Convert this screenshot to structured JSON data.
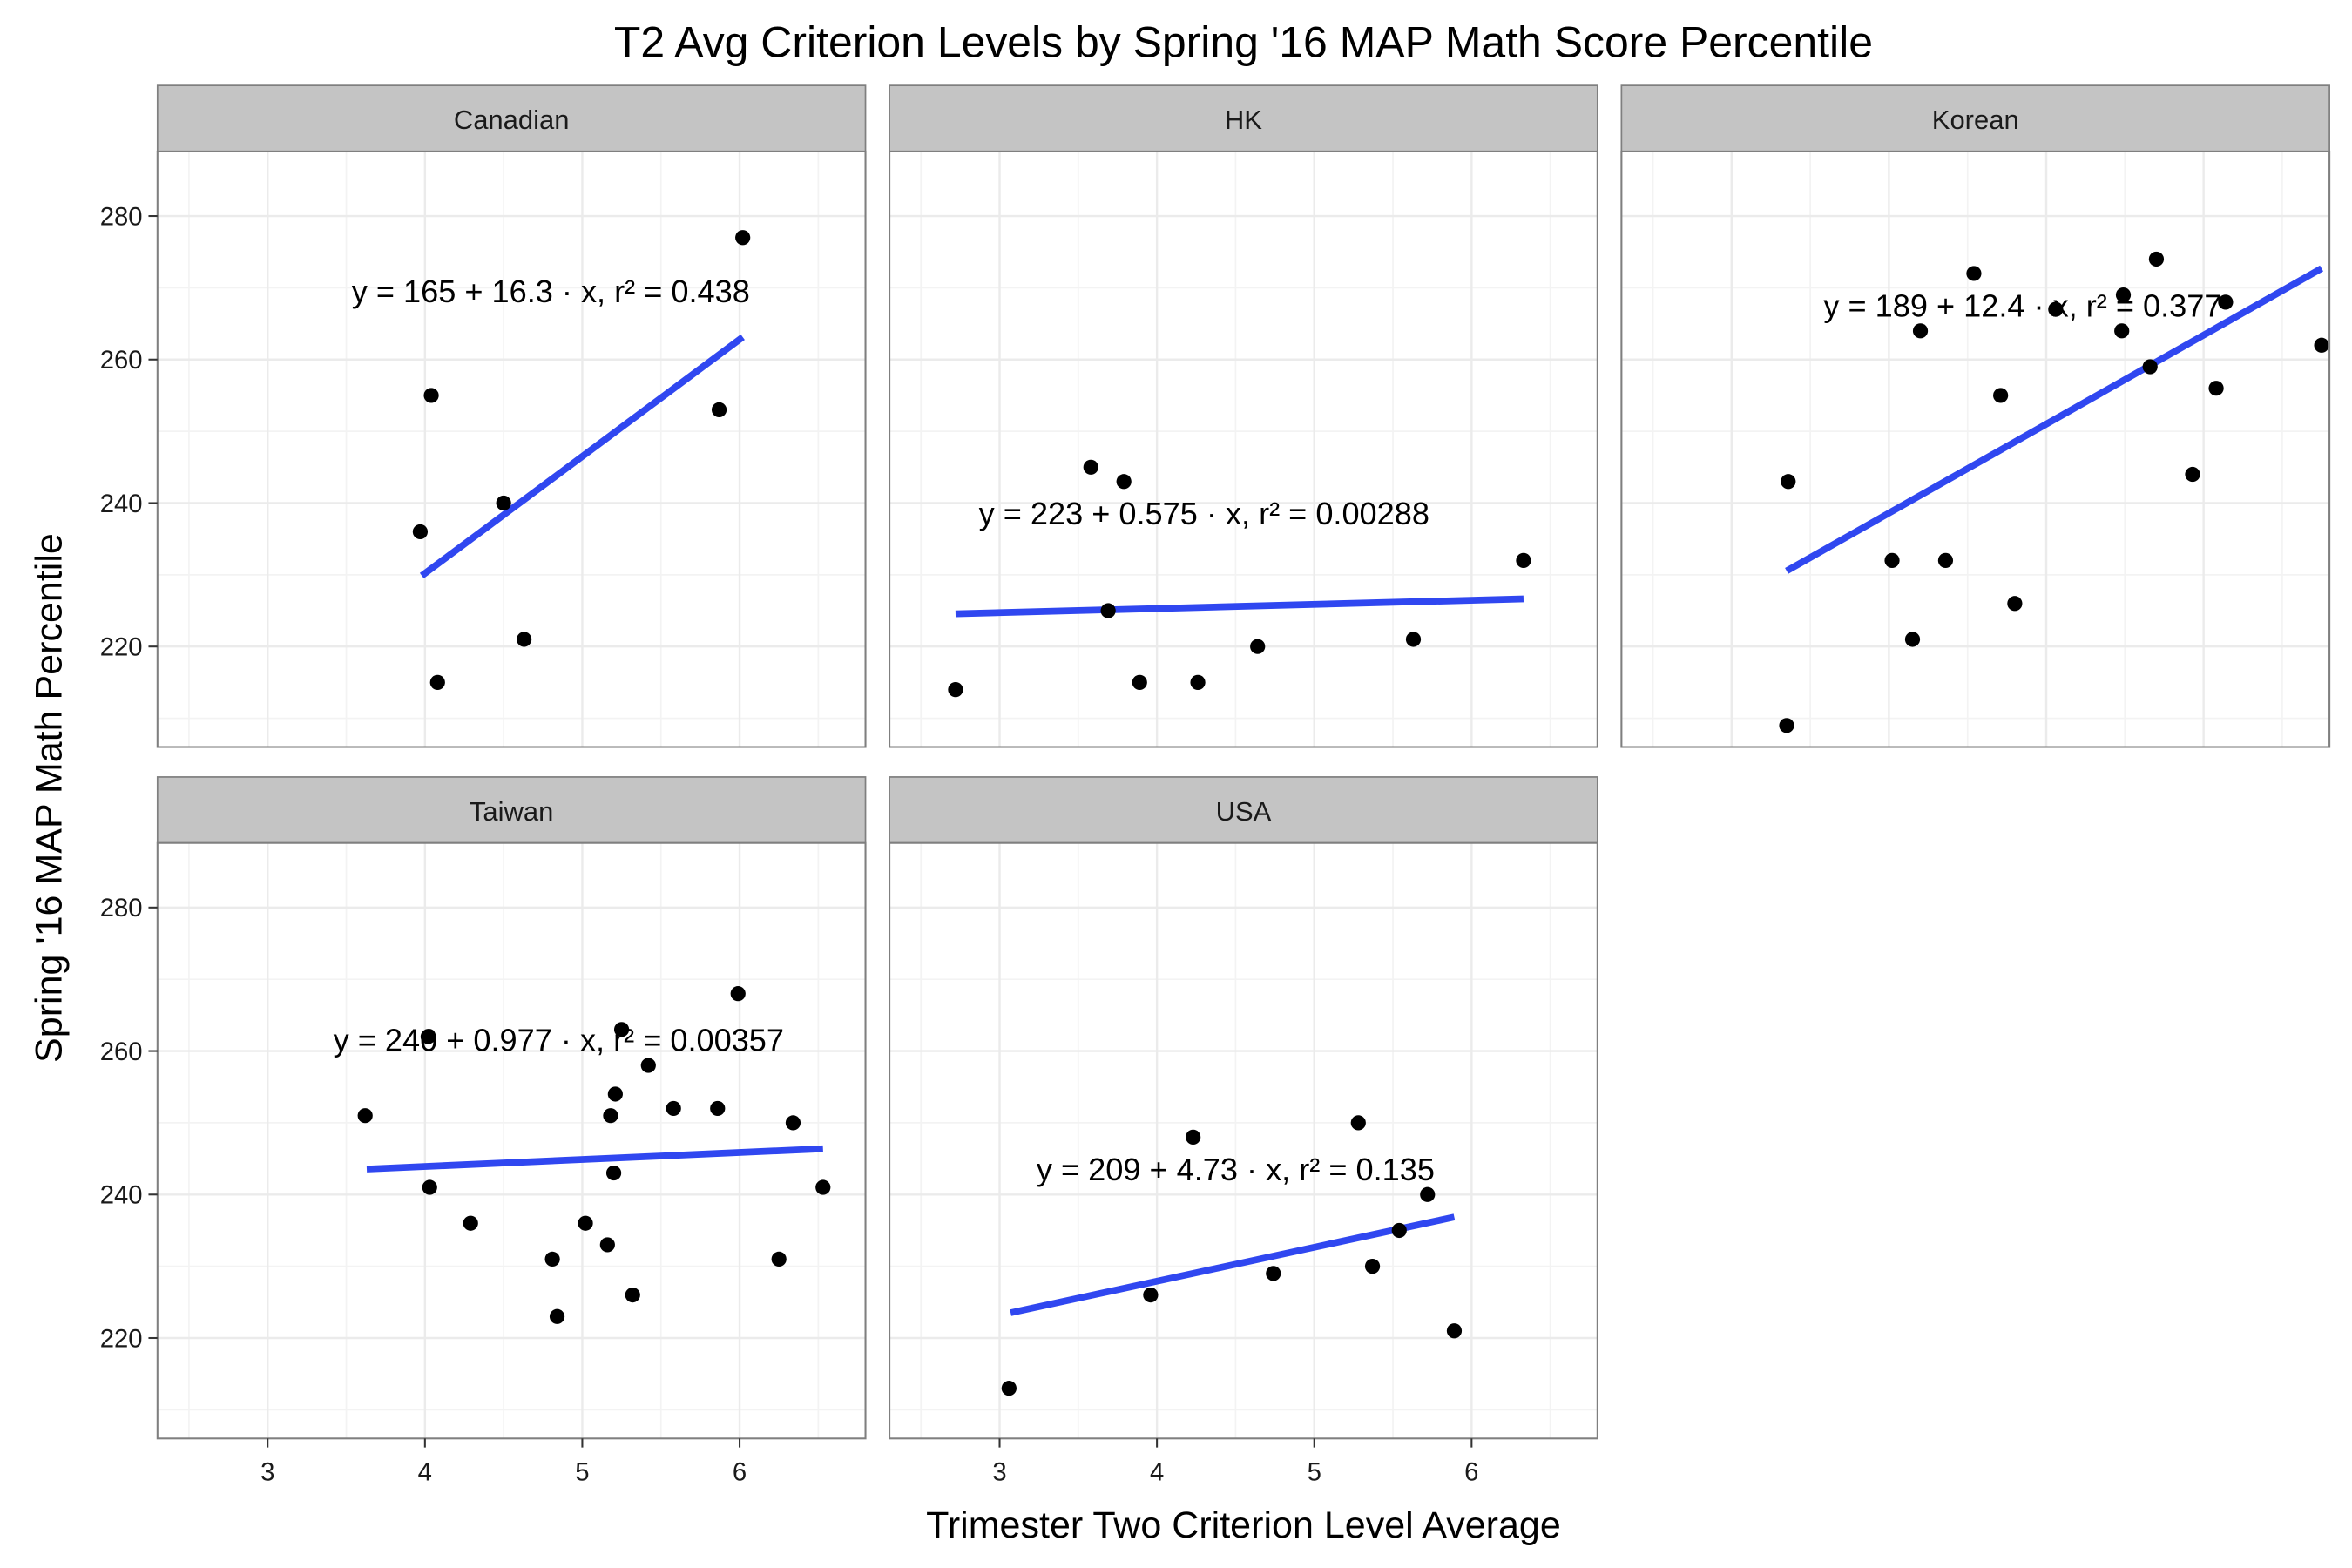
{
  "chart_data": {
    "type": "scatter",
    "title": "T2 Avg Criterion Levels by Spring '16 MAP Math Score Percentile",
    "xlabel": "Trimester Two Criterion Level Average",
    "ylabel": "Spring '16 MAP Math Percentile",
    "xlim": [
      2.3,
      6.8
    ],
    "ylim": [
      206,
      289
    ],
    "x_ticks": [
      3,
      4,
      5,
      6
    ],
    "y_ticks": [
      220,
      240,
      260,
      280
    ],
    "grid": true,
    "colors": {
      "fit_line": "#3047f0",
      "points": "#000000",
      "strip_bg": "#c4c4c4",
      "grid": "#ebebeb",
      "panel_border": "#7f7f7f"
    },
    "panels": [
      {
        "name": "Canadian",
        "equation": "y = 165 + 16.3 · x,  r² = 0.438",
        "fit": {
          "intercept": 165,
          "slope": 16.3,
          "x_range": [
            3.98,
            6.02
          ]
        },
        "points": [
          [
            3.97,
            236
          ],
          [
            4.04,
            255
          ],
          [
            4.08,
            215
          ],
          [
            4.5,
            240
          ],
          [
            4.63,
            221
          ],
          [
            5.87,
            253
          ],
          [
            6.02,
            277
          ]
        ]
      },
      {
        "name": "HK",
        "equation": "y = 223 + 0.575 · x,  r² = 0.00288",
        "fit": {
          "intercept": 223,
          "slope": 0.575,
          "x_range": [
            2.72,
            6.33
          ]
        },
        "points": [
          [
            2.72,
            214
          ],
          [
            3.58,
            245
          ],
          [
            3.69,
            225
          ],
          [
            3.79,
            243
          ],
          [
            3.89,
            215
          ],
          [
            4.26,
            215
          ],
          [
            4.64,
            220
          ],
          [
            5.63,
            221
          ],
          [
            6.33,
            232
          ]
        ]
      },
      {
        "name": "Korean",
        "equation": "y = 189 + 12.4 · x,  r² = 0.377",
        "fit": {
          "intercept": 189,
          "slope": 12.4,
          "x_range": [
            3.35,
            6.75
          ]
        },
        "points": [
          [
            3.35,
            209
          ],
          [
            3.36,
            243
          ],
          [
            4.02,
            232
          ],
          [
            4.15,
            221
          ],
          [
            4.2,
            264
          ],
          [
            4.36,
            232
          ],
          [
            4.54,
            272
          ],
          [
            4.71,
            255
          ],
          [
            4.8,
            226
          ],
          [
            5.06,
            267
          ],
          [
            5.48,
            264
          ],
          [
            5.49,
            269
          ],
          [
            5.66,
            259
          ],
          [
            5.7,
            274
          ],
          [
            5.93,
            244
          ],
          [
            6.08,
            256
          ],
          [
            6.14,
            268
          ],
          [
            6.75,
            262
          ]
        ]
      },
      {
        "name": "Taiwan",
        "equation": "y = 240 + 0.977 · x,  r² = 0.00357",
        "fit": {
          "intercept": 240,
          "slope": 0.977,
          "x_range": [
            3.63,
            6.53
          ]
        },
        "points": [
          [
            3.62,
            251
          ],
          [
            4.02,
            262
          ],
          [
            4.03,
            241
          ],
          [
            4.29,
            236
          ],
          [
            4.81,
            231
          ],
          [
            4.84,
            223
          ],
          [
            5.02,
            236
          ],
          [
            5.16,
            233
          ],
          [
            5.18,
            251
          ],
          [
            5.2,
            243
          ],
          [
            5.21,
            254
          ],
          [
            5.25,
            263
          ],
          [
            5.32,
            226
          ],
          [
            5.42,
            258
          ],
          [
            5.58,
            252
          ],
          [
            5.86,
            252
          ],
          [
            5.99,
            268
          ],
          [
            6.25,
            231
          ],
          [
            6.34,
            250
          ],
          [
            6.53,
            241
          ]
        ]
      },
      {
        "name": "USA",
        "equation": "y = 209 + 4.73 · x,  r² = 0.135",
        "fit": {
          "intercept": 209,
          "slope": 4.73,
          "x_range": [
            3.07,
            5.89
          ]
        },
        "points": [
          [
            3.06,
            213
          ],
          [
            3.96,
            226
          ],
          [
            4.23,
            248
          ],
          [
            4.74,
            229
          ],
          [
            5.28,
            250
          ],
          [
            5.37,
            230
          ],
          [
            5.54,
            235
          ],
          [
            5.72,
            240
          ],
          [
            5.89,
            221
          ]
        ]
      }
    ]
  }
}
